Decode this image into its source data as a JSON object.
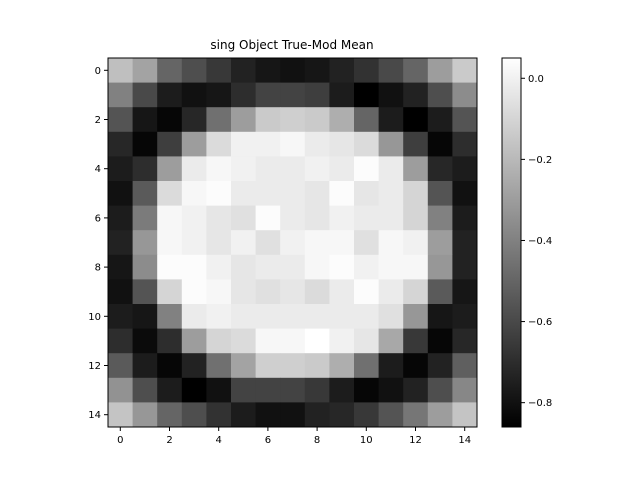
{
  "chart_data": {
    "type": "heatmap",
    "title": "sing Object True-Mod Mean",
    "xlabel": "",
    "ylabel": "",
    "colormap": "gray",
    "x_ticks": [
      0,
      2,
      4,
      6,
      8,
      10,
      12,
      14
    ],
    "y_ticks": [
      0,
      2,
      4,
      6,
      8,
      10,
      12,
      14
    ],
    "x_tick_labels": [
      "0",
      "2",
      "4",
      "6",
      "8",
      "10",
      "12",
      "14"
    ],
    "y_tick_labels": [
      "0",
      "2",
      "4",
      "6",
      "8",
      "10",
      "12",
      "14"
    ],
    "colorbar": {
      "min": -0.86,
      "max": 0.05,
      "ticks": [
        0.0,
        -0.2,
        -0.4,
        -0.6,
        -0.8
      ],
      "tick_labels": [
        "0.0",
        "−0.2",
        "−0.4",
        "−0.6",
        "−0.8"
      ]
    },
    "grid": false,
    "values": [
      [
        -0.18,
        -0.28,
        -0.5,
        -0.58,
        -0.66,
        -0.74,
        -0.78,
        -0.8,
        -0.78,
        -0.74,
        -0.68,
        -0.6,
        -0.5,
        -0.3,
        -0.14
      ],
      [
        -0.4,
        -0.6,
        -0.76,
        -0.8,
        -0.78,
        -0.7,
        -0.62,
        -0.62,
        -0.64,
        -0.76,
        -0.86,
        -0.8,
        -0.74,
        -0.58,
        -0.36
      ],
      [
        -0.56,
        -0.78,
        -0.84,
        -0.72,
        -0.46,
        -0.3,
        -0.14,
        -0.12,
        -0.14,
        -0.24,
        -0.5,
        -0.76,
        -0.86,
        -0.76,
        -0.56
      ],
      [
        -0.72,
        -0.84,
        -0.64,
        -0.3,
        -0.08,
        0.0,
        0.0,
        0.02,
        -0.02,
        -0.04,
        -0.08,
        -0.32,
        -0.64,
        -0.84,
        -0.7
      ],
      [
        -0.76,
        -0.7,
        -0.3,
        -0.02,
        0.02,
        0.0,
        -0.02,
        -0.02,
        0.0,
        -0.02,
        0.04,
        -0.02,
        -0.3,
        -0.72,
        -0.76
      ],
      [
        -0.8,
        -0.54,
        -0.08,
        0.02,
        0.04,
        -0.02,
        -0.02,
        -0.02,
        -0.04,
        0.04,
        -0.04,
        -0.02,
        -0.1,
        -0.56,
        -0.8
      ],
      [
        -0.76,
        -0.42,
        0.02,
        0.0,
        -0.04,
        -0.06,
        0.04,
        -0.02,
        -0.04,
        0.0,
        -0.02,
        -0.02,
        -0.1,
        -0.4,
        -0.76
      ],
      [
        -0.74,
        -0.32,
        0.02,
        0.0,
        -0.04,
        0.0,
        -0.06,
        0.0,
        0.02,
        0.02,
        -0.06,
        0.02,
        0.0,
        -0.3,
        -0.74
      ],
      [
        -0.78,
        -0.36,
        0.04,
        0.04,
        0.0,
        -0.04,
        -0.02,
        -0.02,
        0.02,
        0.04,
        0.0,
        0.02,
        0.02,
        -0.32,
        -0.74
      ],
      [
        -0.8,
        -0.56,
        -0.1,
        0.04,
        0.02,
        -0.04,
        -0.06,
        -0.04,
        -0.08,
        -0.02,
        0.04,
        -0.02,
        -0.1,
        -0.54,
        -0.78
      ],
      [
        -0.76,
        -0.78,
        -0.4,
        -0.02,
        0.0,
        -0.02,
        -0.02,
        -0.02,
        -0.02,
        -0.02,
        -0.02,
        -0.06,
        -0.32,
        -0.78,
        -0.76
      ],
      [
        -0.7,
        -0.82,
        -0.7,
        -0.3,
        -0.1,
        -0.08,
        0.02,
        0.02,
        0.06,
        0.0,
        -0.04,
        -0.26,
        -0.66,
        -0.84,
        -0.72
      ],
      [
        -0.54,
        -0.76,
        -0.84,
        -0.74,
        -0.46,
        -0.28,
        -0.12,
        -0.12,
        -0.14,
        -0.24,
        -0.46,
        -0.76,
        -0.84,
        -0.74,
        -0.52
      ],
      [
        -0.34,
        -0.58,
        -0.76,
        -0.86,
        -0.8,
        -0.62,
        -0.62,
        -0.62,
        -0.66,
        -0.76,
        -0.84,
        -0.8,
        -0.74,
        -0.58,
        -0.38
      ],
      [
        -0.16,
        -0.32,
        -0.5,
        -0.58,
        -0.68,
        -0.76,
        -0.8,
        -0.8,
        -0.74,
        -0.72,
        -0.66,
        -0.56,
        -0.44,
        -0.3,
        -0.16
      ]
    ]
  }
}
